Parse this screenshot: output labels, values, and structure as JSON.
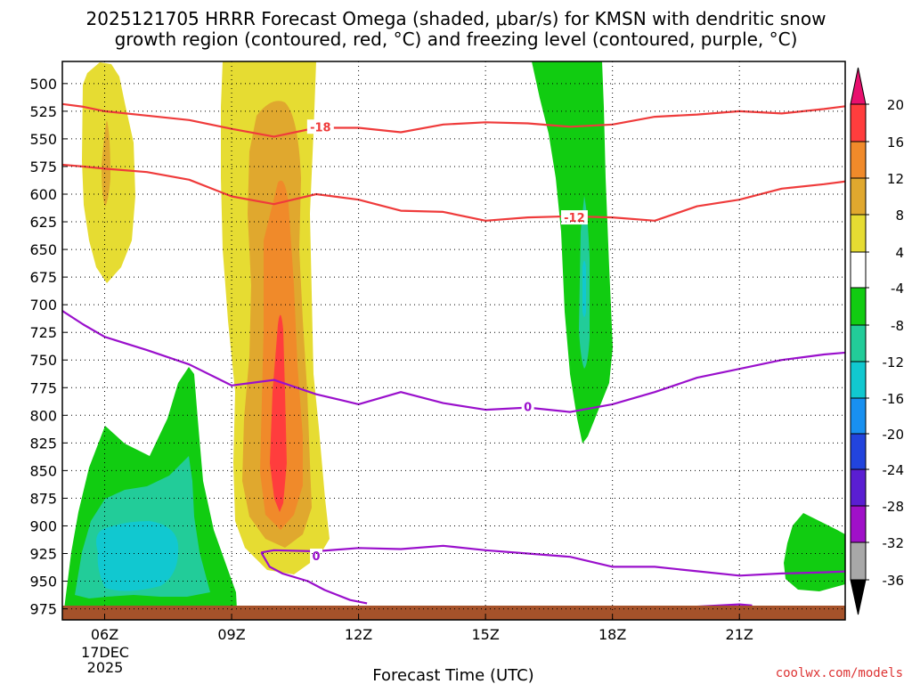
{
  "chart_data": {
    "type": "heatmap",
    "title_line1": "2025121705 HRRR Forecast Omega (shaded, μbar/s) for KMSN with dendritic snow",
    "title_line2": "growth region (contoured, red, °C) and freezing level (contoured, purple, °C)",
    "xlabel": "Forecast Time (UTC)",
    "date_label": "17DEC",
    "year_label": "2025",
    "source": "coolwx.com/models",
    "x_range_hours": [
      5,
      23.5
    ],
    "x_ticks": [
      {
        "hour": 6,
        "label": "06Z"
      },
      {
        "hour": 9,
        "label": "09Z"
      },
      {
        "hour": 12,
        "label": "12Z"
      },
      {
        "hour": 15,
        "label": "15Z"
      },
      {
        "hour": 18,
        "label": "18Z"
      },
      {
        "hour": 21,
        "label": "21Z"
      }
    ],
    "y_range_hpa": [
      480,
      985
    ],
    "y_ticks": [
      500,
      525,
      550,
      575,
      600,
      625,
      650,
      675,
      700,
      725,
      750,
      775,
      800,
      825,
      850,
      875,
      900,
      925,
      950,
      975
    ],
    "colorbar": {
      "labels": [
        "20",
        "16",
        "12",
        "8",
        "4",
        "-4",
        "-8",
        "-12",
        "-16",
        "-20",
        "-24",
        "-28",
        "-32",
        "-36"
      ],
      "bins": [
        {
          "from": 16,
          "to": 20,
          "color": "#ff3d3d"
        },
        {
          "from": 12,
          "to": 16,
          "color": "#f08a2a"
        },
        {
          "from": 8,
          "to": 12,
          "color": "#e0a82e"
        },
        {
          "from": 4,
          "to": 8,
          "color": "#e6dc32"
        },
        {
          "from": -4,
          "to": 4,
          "color": "#ffffff"
        },
        {
          "from": -8,
          "to": -4,
          "color": "#11cc11"
        },
        {
          "from": -12,
          "to": -8,
          "color": "#22cc99"
        },
        {
          "from": -16,
          "to": -12,
          "color": "#11c8d0"
        },
        {
          "from": -20,
          "to": -16,
          "color": "#1890f0"
        },
        {
          "from": -24,
          "to": -20,
          "color": "#2244dd"
        },
        {
          "from": -28,
          "to": -24,
          "color": "#5a1ed2"
        },
        {
          "from": -32,
          "to": -28,
          "color": "#a010c8"
        },
        {
          "from": -36,
          "to": -32,
          "color": "#a8a8a8"
        }
      ],
      "top_arrow_color": "#e8106e",
      "bottom_arrow_color": "#000000"
    },
    "colors": {
      "dgz": "#ef3b3b",
      "freezing": "#9a10cc",
      "ground": "#a5522a"
    },
    "contours": [
      {
        "label": "-18",
        "label_at": {
          "hour": 11.1,
          "p": 539
        },
        "points": [
          [
            4.9,
            518
          ],
          [
            5.5,
            521
          ],
          [
            6,
            525
          ],
          [
            7,
            529
          ],
          [
            8,
            533
          ],
          [
            9,
            541
          ],
          [
            10,
            548
          ],
          [
            11,
            540
          ],
          [
            12,
            540
          ],
          [
            13,
            544
          ],
          [
            14,
            537
          ],
          [
            15,
            535
          ],
          [
            16,
            536
          ],
          [
            17,
            539
          ],
          [
            18,
            537
          ],
          [
            19,
            530
          ],
          [
            20,
            528
          ],
          [
            21,
            525
          ],
          [
            22,
            527
          ],
          [
            23,
            523
          ],
          [
            23.6,
            520
          ]
        ]
      },
      {
        "label": "-12",
        "label_at": {
          "hour": 17.1,
          "p": 621
        },
        "points": [
          [
            4.9,
            573
          ],
          [
            5.5,
            575
          ],
          [
            6,
            577
          ],
          [
            7,
            580
          ],
          [
            8,
            587
          ],
          [
            9,
            602
          ],
          [
            10,
            609
          ],
          [
            11,
            600
          ],
          [
            12,
            605
          ],
          [
            13,
            615
          ],
          [
            14,
            616
          ],
          [
            15,
            624
          ],
          [
            16,
            621
          ],
          [
            17,
            620
          ],
          [
            18,
            621
          ],
          [
            19,
            624
          ],
          [
            20,
            611
          ],
          [
            21,
            605
          ],
          [
            22,
            595
          ],
          [
            23,
            591
          ],
          [
            23.6,
            588
          ]
        ]
      },
      {
        "label": "0",
        "label_at": {
          "hour": 16,
          "p": 792
        },
        "points": [
          [
            4.9,
            703
          ],
          [
            5.5,
            718
          ],
          [
            6,
            729
          ],
          [
            7,
            741
          ],
          [
            8,
            754
          ],
          [
            9,
            773
          ],
          [
            10,
            768
          ],
          [
            11,
            781
          ],
          [
            12,
            790
          ],
          [
            13,
            779
          ],
          [
            14,
            789
          ],
          [
            15,
            795
          ],
          [
            16,
            793
          ],
          [
            17,
            797
          ],
          [
            18,
            790
          ],
          [
            19,
            779
          ],
          [
            20,
            766
          ],
          [
            21,
            758
          ],
          [
            22,
            750
          ],
          [
            23,
            745
          ],
          [
            23.6,
            743
          ]
        ]
      },
      {
        "label": "0",
        "label_at": {
          "hour": 11,
          "p": 927
        },
        "points": [
          [
            9.7,
            924
          ],
          [
            10,
            922
          ],
          [
            11,
            923
          ],
          [
            12,
            920
          ],
          [
            13,
            921
          ],
          [
            14,
            918
          ],
          [
            15,
            922
          ],
          [
            16,
            925
          ],
          [
            17,
            928
          ],
          [
            18,
            937
          ],
          [
            19,
            937
          ],
          [
            20,
            941
          ],
          [
            21,
            945
          ],
          [
            22,
            943
          ],
          [
            23,
            942
          ],
          [
            23.6,
            941
          ]
        ]
      },
      {
        "label": "",
        "label_at": null,
        "points": [
          [
            9.7,
            924
          ],
          [
            9.9,
            937
          ],
          [
            10.2,
            943
          ],
          [
            10.8,
            950
          ],
          [
            11.2,
            958
          ],
          [
            11.8,
            967
          ],
          [
            12.2,
            970
          ]
        ]
      },
      {
        "label": "",
        "label_at": null,
        "points": [
          [
            19.2,
            974
          ],
          [
            20,
            973
          ],
          [
            21,
            971
          ],
          [
            21.3,
            972
          ]
        ]
      }
    ]
  }
}
